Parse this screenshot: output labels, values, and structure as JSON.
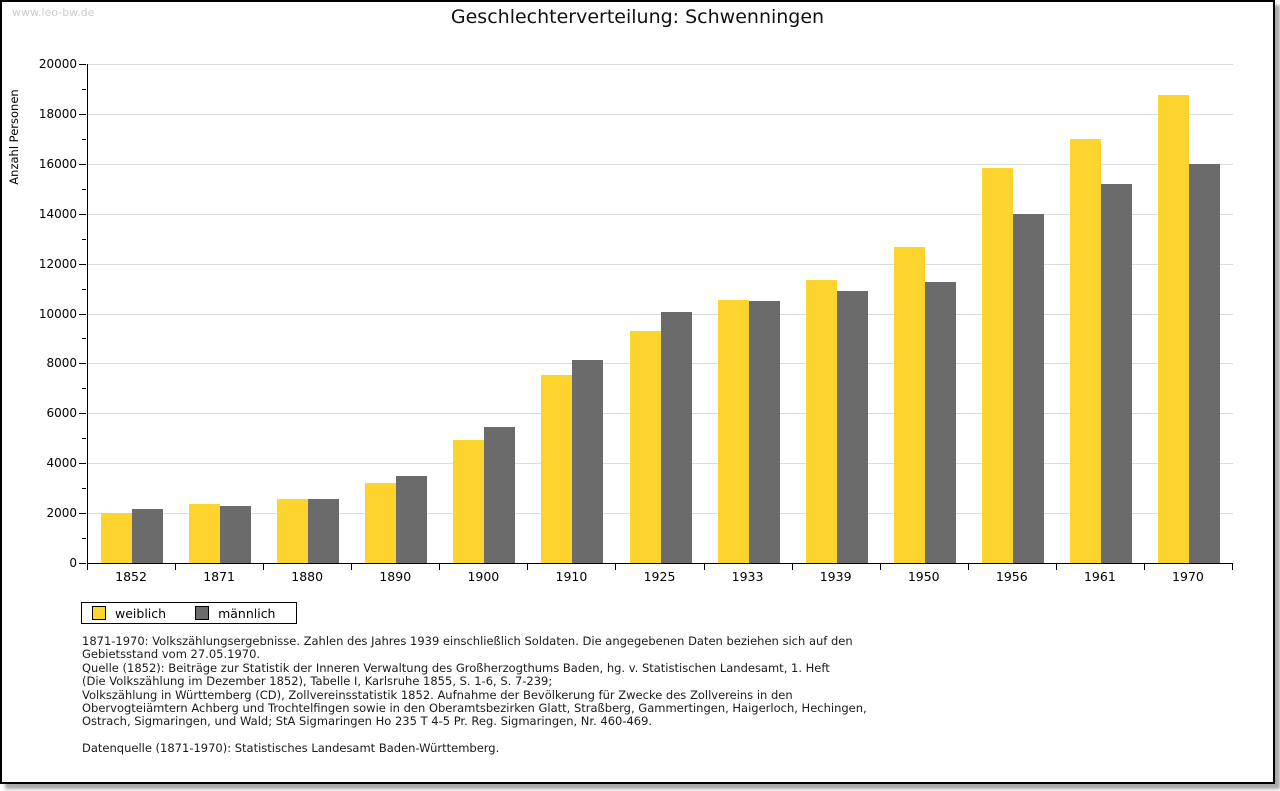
{
  "watermark": "www.leo-bw.de",
  "title": "Geschlechterverteilung: Schwenningen",
  "chart_data": {
    "type": "bar",
    "title": "Geschlechterverteilung: Schwenningen",
    "xlabel": "",
    "ylabel": "Anzahl Personen",
    "ylim": [
      0,
      20000
    ],
    "ytick_step": 2000,
    "yminor_step": 1000,
    "grid": true,
    "legend_position": "bottom-left",
    "categories": [
      "1852",
      "1871",
      "1880",
      "1890",
      "1900",
      "1910",
      "1925",
      "1933",
      "1939",
      "1950",
      "1956",
      "1961",
      "1970"
    ],
    "series": [
      {
        "name": "weiblich",
        "color": "#FDD32D",
        "values": [
          2000,
          2350,
          2550,
          3200,
          4950,
          7550,
          9300,
          10550,
          11350,
          12650,
          15850,
          17000,
          18750
        ]
      },
      {
        "name": "männlich",
        "color": "#6B6B6B",
        "values": [
          2150,
          2300,
          2550,
          3500,
          5450,
          8150,
          10050,
          10500,
          10900,
          11250,
          14000,
          15200,
          16000
        ]
      }
    ]
  },
  "footnotes": [
    "1871-1970: Volkszählungsergebnisse. Zahlen des Jahres 1939 einschließlich Soldaten. Die angegebenen Daten beziehen sich auf den",
    "Gebietsstand vom 27.05.1970.",
    "Quelle (1852): Beiträge zur Statistik der Inneren Verwaltung des Großherzogthums Baden, hg. v. Statistischen Landesamt, 1. Heft",
    "(Die Volkszählung im Dezember 1852), Tabelle I, Karlsruhe 1855, S. 1-6, S. 7-239;",
    "Volkszählung in Württemberg (CD), Zollvereinsstatistik 1852. Aufnahme der Bevölkerung für Zwecke des Zollvereins in den",
    "Obervogteiämtern Achberg und Trochtelfingen sowie in den Oberamtsbezirken Glatt, Straßberg, Gammertingen, Haigerloch, Hechingen,",
    "Ostrach, Sigmaringen, und Wald; StA Sigmaringen Ho 235 T 4-5 Pr. Reg. Sigmaringen, Nr. 460-469.",
    "",
    "Datenquelle (1871-1970): Statistisches Landesamt Baden-Württemberg."
  ],
  "colors": {
    "weiblich": "#FDD32D",
    "männlich": "#6B6B6B",
    "gridline": "#dcdcdc",
    "axis": "#000000",
    "watermark": "#cccccc",
    "frame_shadow": "#a9a9a9"
  }
}
